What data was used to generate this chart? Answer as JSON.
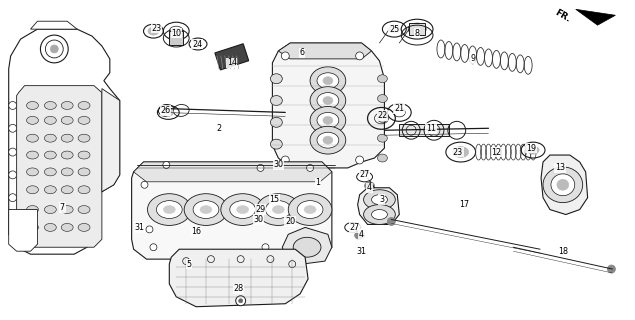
{
  "background_color": "#ffffff",
  "line_color": "#1a1a1a",
  "figsize": [
    6.35,
    3.2
  ],
  "dpi": 100,
  "labels": [
    [
      "23",
      155,
      27
    ],
    [
      "10",
      175,
      32
    ],
    [
      "24",
      196,
      43
    ],
    [
      "14",
      231,
      62
    ],
    [
      "26",
      164,
      110
    ],
    [
      "2",
      218,
      128
    ],
    [
      "6",
      302,
      52
    ],
    [
      "25",
      395,
      28
    ],
    [
      "8",
      418,
      32
    ],
    [
      "9",
      474,
      58
    ],
    [
      "22",
      383,
      115
    ],
    [
      "21",
      400,
      108
    ],
    [
      "11",
      432,
      128
    ],
    [
      "23",
      459,
      152
    ],
    [
      "12",
      498,
      152
    ],
    [
      "19",
      533,
      148
    ],
    [
      "13",
      562,
      168
    ],
    [
      "27",
      365,
      175
    ],
    [
      "4",
      370,
      188
    ],
    [
      "3",
      382,
      200
    ],
    [
      "27",
      355,
      228
    ],
    [
      "4",
      362,
      235
    ],
    [
      "1",
      318,
      183
    ],
    [
      "30",
      278,
      165
    ],
    [
      "15",
      274,
      200
    ],
    [
      "29",
      260,
      210
    ],
    [
      "20",
      290,
      222
    ],
    [
      "30",
      258,
      220
    ],
    [
      "31",
      138,
      228
    ],
    [
      "16",
      195,
      232
    ],
    [
      "5",
      188,
      265
    ],
    [
      "28",
      238,
      290
    ],
    [
      "31",
      362,
      252
    ],
    [
      "17",
      465,
      205
    ],
    [
      "18",
      565,
      252
    ],
    [
      "7",
      60,
      208
    ]
  ]
}
